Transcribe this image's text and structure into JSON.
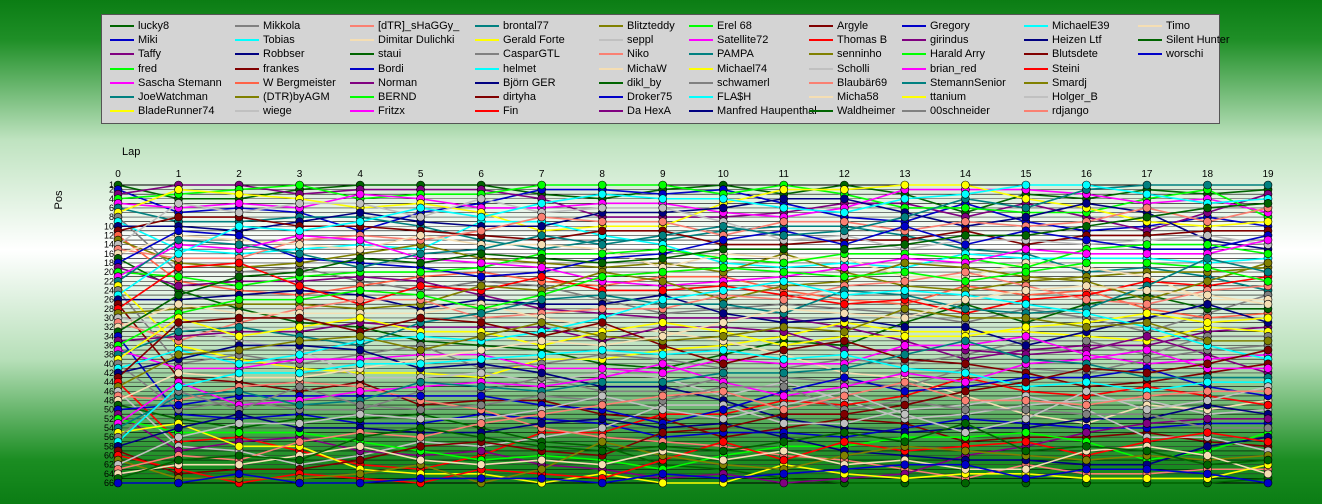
{
  "chart_data": {
    "type": "line",
    "xlabel": "Lap",
    "ylabel": "Pos",
    "x": [
      0,
      1,
      2,
      3,
      4,
      5,
      6,
      7,
      8,
      9,
      10,
      11,
      12,
      13,
      14,
      15,
      16,
      17,
      18,
      19
    ],
    "ylim": [
      1,
      66
    ],
    "y_ticks": [
      1,
      2,
      4,
      6,
      8,
      10,
      12,
      14,
      16,
      18,
      20,
      22,
      24,
      26,
      28,
      30,
      32,
      34,
      36,
      38,
      40,
      42,
      44,
      46,
      48,
      50,
      52,
      54,
      56,
      58,
      60,
      62,
      64,
      66
    ],
    "grid": true,
    "legend_position": "top",
    "series": [
      {
        "name": "lucky8",
        "color": "#006400"
      },
      {
        "name": "Miki",
        "color": "#0000c8"
      },
      {
        "name": "Taffy",
        "color": "#800080"
      },
      {
        "name": "fred",
        "color": "#00ff00"
      },
      {
        "name": "Sascha Stemann",
        "color": "#ff00ff"
      },
      {
        "name": "JoeWatchman",
        "color": "#008080"
      },
      {
        "name": "BladeRunner74",
        "color": "#ffff00"
      },
      {
        "name": "Mikkola",
        "color": "#808080"
      },
      {
        "name": "Tobias",
        "color": "#00ffff"
      },
      {
        "name": "Robbser",
        "color": "#000080"
      },
      {
        "name": "frankes",
        "color": "#800000"
      },
      {
        "name": "W Bergmeister",
        "color": "#ff6347"
      },
      {
        "name": "(DTR)byAGM",
        "color": "#808000"
      },
      {
        "name": "wiege",
        "color": "#c0c0c0"
      },
      {
        "name": "[dTR]_sHaGGy_",
        "color": "#fa8072"
      },
      {
        "name": "Dimitar Dulichki",
        "color": "#f5deb3"
      },
      {
        "name": "staui",
        "color": "#006400"
      },
      {
        "name": "Bordi",
        "color": "#0000c8"
      },
      {
        "name": "Norman",
        "color": "#800080"
      },
      {
        "name": "BERND",
        "color": "#00ff00"
      },
      {
        "name": "Fritzx",
        "color": "#ff00ff"
      },
      {
        "name": "brontal77",
        "color": "#008080"
      },
      {
        "name": "Gerald Forte",
        "color": "#ffff00"
      },
      {
        "name": "CasparGTL",
        "color": "#808080"
      },
      {
        "name": "helmet",
        "color": "#00ffff"
      },
      {
        "name": "Björn GER",
        "color": "#000080"
      },
      {
        "name": "dirtyha",
        "color": "#800000"
      },
      {
        "name": "Fin",
        "color": "#ff0000"
      },
      {
        "name": "Blitzteddy",
        "color": "#808000"
      },
      {
        "name": "seppl",
        "color": "#c0c0c0"
      },
      {
        "name": "Niko",
        "color": "#fa8072"
      },
      {
        "name": "MichaW",
        "color": "#f5deb3"
      },
      {
        "name": "dikl_by",
        "color": "#006400"
      },
      {
        "name": "Droker75",
        "color": "#0000c8"
      },
      {
        "name": "Da HexA",
        "color": "#800080"
      },
      {
        "name": "Erel 68",
        "color": "#00ff00"
      },
      {
        "name": "Satellite72",
        "color": "#ff00ff"
      },
      {
        "name": "PAMPA",
        "color": "#008080"
      },
      {
        "name": "Michael74",
        "color": "#ffff00"
      },
      {
        "name": "schwamerl",
        "color": "#808080"
      },
      {
        "name": "FLA$H",
        "color": "#00ffff"
      },
      {
        "name": "Manfred Haupenthal",
        "color": "#000080"
      },
      {
        "name": "Argyle",
        "color": "#800000"
      },
      {
        "name": "Thomas B",
        "color": "#ff0000"
      },
      {
        "name": "senninho",
        "color": "#808000"
      },
      {
        "name": "Scholli",
        "color": "#c0c0c0"
      },
      {
        "name": "Blaubär69",
        "color": "#fa8072"
      },
      {
        "name": "Micha58",
        "color": "#f5deb3"
      },
      {
        "name": "Waldheimer",
        "color": "#006400"
      },
      {
        "name": "Gregory",
        "color": "#0000c8"
      },
      {
        "name": "girindus",
        "color": "#800080"
      },
      {
        "name": "Harald Arry",
        "color": "#00ff00"
      },
      {
        "name": "brian_red",
        "color": "#ff00ff"
      },
      {
        "name": "StemannSenior",
        "color": "#008080"
      },
      {
        "name": "ttanium",
        "color": "#ffff00"
      },
      {
        "name": "00schneider",
        "color": "#808080"
      },
      {
        "name": "MichaelE39",
        "color": "#00ffff"
      },
      {
        "name": "Heizen Ltf",
        "color": "#000080"
      },
      {
        "name": "Blutsdete",
        "color": "#800000"
      },
      {
        "name": "Steini",
        "color": "#ff0000"
      },
      {
        "name": "Smardj",
        "color": "#808000"
      },
      {
        "name": "Holger_B",
        "color": "#c0c0c0"
      },
      {
        "name": "rdjango",
        "color": "#fa8072"
      },
      {
        "name": "Timo",
        "color": "#f5deb3"
      },
      {
        "name": "Silent Hunter",
        "color": "#006400"
      },
      {
        "name": "worschi",
        "color": "#0000c8"
      }
    ]
  }
}
